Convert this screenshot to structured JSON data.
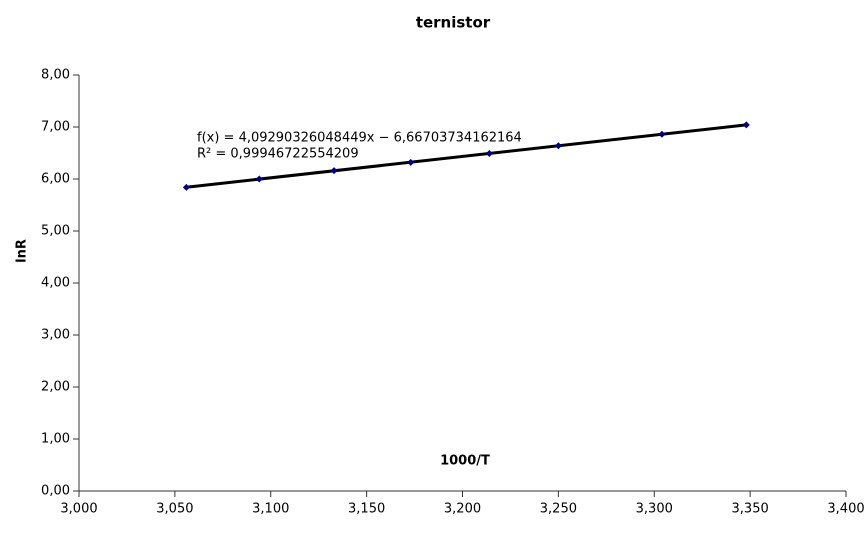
{
  "chart_data": {
    "type": "scatter",
    "title": "ternistor",
    "x_label": "1000/T",
    "y_label": "lnR",
    "annotations": [
      "f(x) = 4,09290326048449x − 6,66703734162164",
      "R² = 0,99946722554209"
    ],
    "x": [
      3.056,
      3.094,
      3.133,
      3.173,
      3.214,
      3.25,
      3.304,
      3.348
    ],
    "series": [
      {
        "name": "lnR",
        "color": "#000080",
        "values": [
          5.84,
          6.0,
          6.16,
          6.32,
          6.49,
          6.64,
          6.86,
          7.04
        ]
      }
    ],
    "trendline": true,
    "trendline_color": "#000000",
    "xlim": [
      3.0,
      3.4
    ],
    "xticks": [
      {
        "value": 3.0,
        "label": "3,000"
      },
      {
        "value": 3.05,
        "label": "3,050"
      },
      {
        "value": 3.1,
        "label": "3,100"
      },
      {
        "value": 3.15,
        "label": "3,150"
      },
      {
        "value": 3.2,
        "label": "3,200"
      },
      {
        "value": 3.25,
        "label": "3,250"
      },
      {
        "value": 3.3,
        "label": "3,300"
      },
      {
        "value": 3.35,
        "label": "3,350"
      },
      {
        "value": 3.4,
        "label": "3,400"
      }
    ],
    "ylim": [
      0,
      8
    ],
    "yticks": [
      {
        "value": 0,
        "label": "0,00"
      },
      {
        "value": 1,
        "label": "1,00"
      },
      {
        "value": 2,
        "label": "2,00"
      },
      {
        "value": 3,
        "label": "3,00"
      },
      {
        "value": 4,
        "label": "4,00"
      },
      {
        "value": 5,
        "label": "5,00"
      },
      {
        "value": 6,
        "label": "6,00"
      },
      {
        "value": 7,
        "label": "7,00"
      },
      {
        "value": 8,
        "label": "8,00"
      }
    ],
    "grid": false
  }
}
